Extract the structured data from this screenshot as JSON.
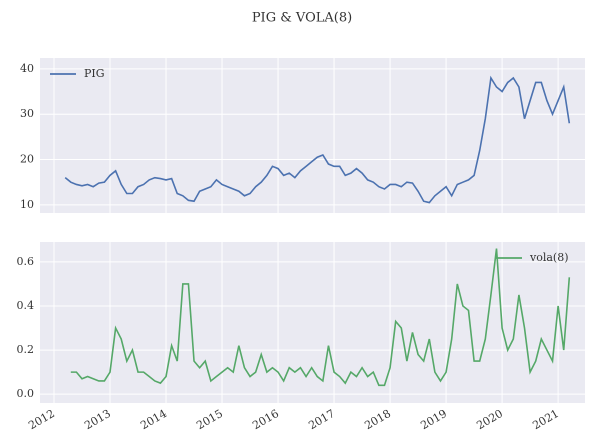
{
  "title": "PIG  & VOLA(8)",
  "chart_data": [
    {
      "type": "line",
      "grid": true,
      "legend": "upper left",
      "xtick_labels": false,
      "xlim": [
        2011.75,
        2021.48
      ],
      "xticks": [
        2012,
        2013,
        2014,
        2015,
        2016,
        2017,
        2018,
        2019,
        2020,
        2021
      ],
      "ylim": [
        8.2,
        42.4
      ],
      "yticks": [
        10,
        20,
        30,
        40
      ],
      "x": [
        2012.2,
        2012.3,
        2012.4,
        2012.5,
        2012.6,
        2012.7,
        2012.8,
        2012.9,
        2013.0,
        2013.1,
        2013.2,
        2013.3,
        2013.4,
        2013.5,
        2013.6,
        2013.7,
        2013.8,
        2013.9,
        2014.0,
        2014.1,
        2014.2,
        2014.3,
        2014.4,
        2014.5,
        2014.6,
        2014.7,
        2014.8,
        2014.9,
        2015.0,
        2015.1,
        2015.2,
        2015.3,
        2015.4,
        2015.5,
        2015.6,
        2015.7,
        2015.8,
        2015.9,
        2016.0,
        2016.1,
        2016.2,
        2016.3,
        2016.4,
        2016.5,
        2016.6,
        2016.7,
        2016.8,
        2016.9,
        2017.0,
        2017.1,
        2017.2,
        2017.3,
        2017.4,
        2017.5,
        2017.6,
        2017.7,
        2017.8,
        2017.9,
        2018.0,
        2018.1,
        2018.2,
        2018.3,
        2018.4,
        2018.5,
        2018.6,
        2018.7,
        2018.8,
        2018.9,
        2019.0,
        2019.1,
        2019.2,
        2019.3,
        2019.4,
        2019.5,
        2019.6,
        2019.7,
        2019.8,
        2019.9,
        2020.0,
        2020.1,
        2020.2,
        2020.3,
        2020.4,
        2020.5,
        2020.6,
        2020.7,
        2020.8,
        2020.9,
        2021.0,
        2021.1,
        2021.2
      ],
      "series": [
        {
          "name": "PIG",
          "color": "#4c72b0",
          "values": [
            16,
            15,
            14.5,
            14.2,
            14.5,
            14,
            14.8,
            15,
            16.5,
            17.5,
            14.5,
            12.5,
            12.5,
            14,
            14.5,
            15.5,
            16,
            15.8,
            15.5,
            15.8,
            12.5,
            12,
            11,
            10.8,
            13,
            13.5,
            14,
            15.5,
            14.5,
            14,
            13.5,
            13,
            12,
            12.5,
            14,
            15,
            16.5,
            18.5,
            18,
            16.5,
            17,
            16,
            17.5,
            18.5,
            19.5,
            20.5,
            21,
            19,
            18.5,
            18.5,
            16.5,
            17,
            18,
            17,
            15.5,
            15,
            14,
            13.5,
            14.5,
            14.5,
            14,
            15,
            14.8,
            13,
            10.8,
            10.5,
            12,
            13,
            14,
            12,
            14.5,
            15,
            15.5,
            16.5,
            22,
            29,
            38,
            36,
            35,
            37,
            38,
            36,
            29,
            33,
            37,
            37,
            33,
            30,
            33,
            36,
            28
          ]
        }
      ]
    },
    {
      "type": "line",
      "grid": true,
      "legend": "upper right",
      "xlim": [
        2011.75,
        2021.48
      ],
      "xticks": [
        2012,
        2013,
        2014,
        2015,
        2016,
        2017,
        2018,
        2019,
        2020,
        2021
      ],
      "ylim": [
        -0.04,
        0.69
      ],
      "yticks": [
        {
          "value": 0,
          "label": "0.0"
        },
        0.2,
        0.4,
        0.6
      ],
      "x": [
        2012.2,
        2012.3,
        2012.4,
        2012.5,
        2012.6,
        2012.7,
        2012.8,
        2012.9,
        2013.0,
        2013.1,
        2013.2,
        2013.3,
        2013.4,
        2013.5,
        2013.6,
        2013.7,
        2013.8,
        2013.9,
        2014.0,
        2014.1,
        2014.2,
        2014.3,
        2014.4,
        2014.5,
        2014.6,
        2014.7,
        2014.8,
        2014.9,
        2015.0,
        2015.1,
        2015.2,
        2015.3,
        2015.4,
        2015.5,
        2015.6,
        2015.7,
        2015.8,
        2015.9,
        2016.0,
        2016.1,
        2016.2,
        2016.3,
        2016.4,
        2016.5,
        2016.6,
        2016.7,
        2016.8,
        2016.9,
        2017.0,
        2017.1,
        2017.2,
        2017.3,
        2017.4,
        2017.5,
        2017.6,
        2017.7,
        2017.8,
        2017.9,
        2018.0,
        2018.1,
        2018.2,
        2018.3,
        2018.4,
        2018.5,
        2018.6,
        2018.7,
        2018.8,
        2018.9,
        2019.0,
        2019.1,
        2019.2,
        2019.3,
        2019.4,
        2019.5,
        2019.6,
        2019.7,
        2019.8,
        2019.9,
        2020.0,
        2020.1,
        2020.2,
        2020.3,
        2020.4,
        2020.5,
        2020.6,
        2020.7,
        2020.8,
        2020.9,
        2021.0,
        2021.1,
        2021.2
      ],
      "series": [
        {
          "name": "vola(8)",
          "color": "#55a868",
          "values": [
            null,
            0.1,
            0.1,
            0.07,
            0.08,
            0.07,
            0.06,
            0.06,
            0.1,
            0.3,
            0.25,
            0.15,
            0.2,
            0.1,
            0.1,
            0.08,
            0.06,
            0.05,
            0.08,
            0.22,
            0.15,
            0.5,
            0.5,
            0.15,
            0.12,
            0.15,
            0.06,
            0.08,
            0.1,
            0.12,
            0.1,
            0.22,
            0.12,
            0.08,
            0.1,
            0.18,
            0.1,
            0.12,
            0.1,
            0.06,
            0.12,
            0.1,
            0.12,
            0.08,
            0.12,
            0.08,
            0.06,
            0.22,
            0.1,
            0.08,
            0.05,
            0.1,
            0.08,
            0.12,
            0.08,
            0.1,
            0.04,
            0.04,
            0.12,
            0.33,
            0.3,
            0.15,
            0.28,
            0.18,
            0.15,
            0.25,
            0.1,
            0.06,
            0.1,
            0.25,
            0.5,
            0.4,
            0.38,
            0.15,
            0.15,
            0.25,
            0.45,
            0.66,
            0.3,
            0.2,
            0.25,
            0.45,
            0.3,
            0.1,
            0.15,
            0.25,
            0.2,
            0.15,
            0.4,
            0.2,
            0.53
          ]
        }
      ]
    }
  ]
}
